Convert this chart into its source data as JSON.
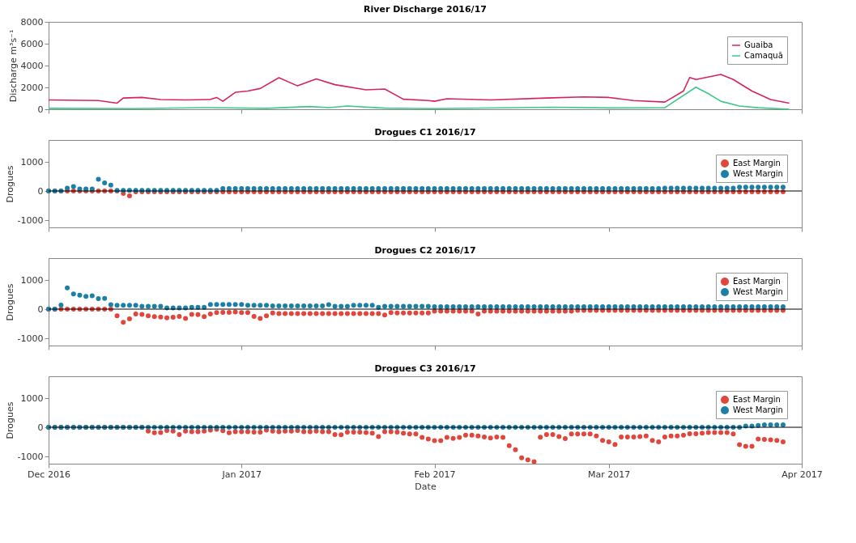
{
  "chart_data": [
    {
      "type": "line",
      "title": "River Discharge 2016/17",
      "ylabel": "Discharge m³s⁻¹",
      "xlim": [
        "2016-12-01",
        "2017-04-01"
      ],
      "xticks": [
        {
          "value": "2016-12-01",
          "label": null
        },
        {
          "value": "2017-01-01",
          "label": null
        },
        {
          "value": "2017-02-01",
          "label": null
        },
        {
          "value": "2017-03-01",
          "label": null
        },
        {
          "value": "2017-04-01",
          "label": null
        }
      ],
      "ylim": [
        0,
        8000
      ],
      "yticks": [
        0,
        2000,
        4000,
        6000,
        8000
      ],
      "tick_labels": "y",
      "legend": "top right",
      "series": [
        {
          "name": "Guaiba",
          "color": "#d6245e",
          "x": [
            "2016-12-01",
            "2016-12-09",
            "2016-12-12",
            "2016-12-13",
            "2016-12-16",
            "2016-12-19",
            "2016-12-23",
            "2016-12-27",
            "2016-12-28",
            "2016-12-29",
            "2016-12-31",
            "2017-01-02",
            "2017-01-04",
            "2017-01-07",
            "2017-01-10",
            "2017-01-13",
            "2017-01-16",
            "2017-01-21",
            "2017-01-24",
            "2017-01-27",
            "2017-01-31",
            "2017-02-01",
            "2017-02-03",
            "2017-02-10",
            "2017-02-19",
            "2017-02-25",
            "2017-03-01",
            "2017-03-05",
            "2017-03-10",
            "2017-03-13",
            "2017-03-14",
            "2017-03-15",
            "2017-03-19",
            "2017-03-21",
            "2017-03-24",
            "2017-03-27",
            "2017-03-30"
          ],
          "values": [
            850,
            800,
            560,
            1030,
            1080,
            890,
            850,
            900,
            1080,
            730,
            1550,
            1670,
            1900,
            2890,
            2140,
            2770,
            2250,
            1780,
            1850,
            920,
            800,
            730,
            960,
            850,
            1030,
            1130,
            1080,
            800,
            660,
            1670,
            2910,
            2720,
            3190,
            2720,
            1670,
            890,
            560
          ]
        },
        {
          "name": "Camaquã",
          "color": "#3ec88a",
          "x": [
            "2016-12-01",
            "2016-12-15",
            "2016-12-26",
            "2017-01-05",
            "2017-01-12",
            "2017-01-15",
            "2017-01-18",
            "2017-01-24",
            "2017-02-01",
            "2017-02-20",
            "2017-03-01",
            "2017-03-10",
            "2017-03-15",
            "2017-03-17",
            "2017-03-19",
            "2017-03-22",
            "2017-03-25",
            "2017-03-30"
          ],
          "values": [
            80,
            60,
            150,
            80,
            250,
            150,
            300,
            100,
            60,
            180,
            120,
            140,
            2020,
            1430,
            730,
            300,
            140,
            0
          ]
        }
      ]
    },
    {
      "type": "scatter",
      "title": "Drogues C1 2016/17",
      "ylabel": "Drogues",
      "marker": "circle",
      "legend": "top right",
      "tick_labels": "y",
      "xlim": [
        "2016-12-01",
        "2017-04-01"
      ],
      "xticks": [
        {
          "value": "2016-12-01",
          "label": null
        },
        {
          "value": "2017-01-01",
          "label": null
        },
        {
          "value": "2017-02-01",
          "label": null
        },
        {
          "value": "2017-03-01",
          "label": null
        },
        {
          "value": "2017-04-01",
          "label": null
        }
      ],
      "ylim": [
        -1250,
        1750
      ],
      "yticks": [
        -1000,
        0,
        1000
      ],
      "ref_lines": [
        {
          "axis": "y",
          "value": 0,
          "color": "#000000"
        }
      ],
      "x": [
        "2016-12-01",
        "2016-12-02",
        "2016-12-03",
        "2016-12-04",
        "2016-12-05",
        "2016-12-06",
        "2016-12-07",
        "2016-12-08",
        "2016-12-09",
        "2016-12-10",
        "2016-12-11",
        "2016-12-12",
        "2016-12-13",
        "2016-12-14",
        "2016-12-15",
        "2016-12-16",
        "2016-12-17",
        "2016-12-18",
        "2016-12-19",
        "2016-12-20",
        "2016-12-21",
        "2016-12-22",
        "2016-12-23",
        "2016-12-24",
        "2016-12-25",
        "2016-12-26",
        "2016-12-27",
        "2016-12-28",
        "2016-12-29",
        "2016-12-30",
        "2016-12-31",
        "2017-01-01",
        "2017-01-02",
        "2017-01-03",
        "2017-01-04",
        "2017-01-05",
        "2017-01-06",
        "2017-01-07",
        "2017-01-08",
        "2017-01-09",
        "2017-01-10",
        "2017-01-11",
        "2017-01-12",
        "2017-01-13",
        "2017-01-14",
        "2017-01-15",
        "2017-01-16",
        "2017-01-17",
        "2017-01-18",
        "2017-01-19",
        "2017-01-20",
        "2017-01-21",
        "2017-01-22",
        "2017-01-23",
        "2017-01-24",
        "2017-01-25",
        "2017-01-26",
        "2017-01-27",
        "2017-01-28",
        "2017-01-29",
        "2017-01-30",
        "2017-01-31",
        "2017-02-01",
        "2017-02-02",
        "2017-02-03",
        "2017-02-04",
        "2017-02-05",
        "2017-02-06",
        "2017-02-07",
        "2017-02-08",
        "2017-02-09",
        "2017-02-10",
        "2017-02-11",
        "2017-02-12",
        "2017-02-13",
        "2017-02-14",
        "2017-02-15",
        "2017-02-16",
        "2017-02-17",
        "2017-02-18",
        "2017-02-19",
        "2017-02-20",
        "2017-02-21",
        "2017-02-22",
        "2017-02-23",
        "2017-02-24",
        "2017-02-25",
        "2017-02-26",
        "2017-02-27",
        "2017-02-28",
        "2017-03-01",
        "2017-03-02",
        "2017-03-03",
        "2017-03-04",
        "2017-03-05",
        "2017-03-06",
        "2017-03-07",
        "2017-03-08",
        "2017-03-09",
        "2017-03-10",
        "2017-03-11",
        "2017-03-12",
        "2017-03-13",
        "2017-03-14",
        "2017-03-15",
        "2017-03-16",
        "2017-03-17",
        "2017-03-18",
        "2017-03-19",
        "2017-03-20",
        "2017-03-21",
        "2017-03-22",
        "2017-03-23",
        "2017-03-24",
        "2017-03-25",
        "2017-03-26",
        "2017-03-27",
        "2017-03-28",
        "2017-03-29"
      ],
      "series": [
        {
          "name": "East Margin",
          "color": "#e0463c",
          "values": [
            0,
            0,
            0,
            0,
            0,
            0,
            0,
            0,
            0,
            0,
            0,
            0,
            -80,
            -170,
            -30,
            -30,
            -30,
            -30,
            -30,
            -30,
            -30,
            -30,
            -30,
            -30,
            -30,
            -30,
            -30,
            -30,
            -30,
            -30,
            -30,
            -30,
            -30,
            -30,
            -30,
            -30,
            -30,
            -30,
            -30,
            -30,
            -30,
            -30,
            -30,
            -30,
            -30,
            -30,
            -30,
            -30,
            -30,
            -30,
            -30,
            -30,
            -30,
            -30,
            -30,
            -30,
            -30,
            -30,
            -30,
            -30,
            -30,
            -30,
            -30,
            -30,
            -30,
            -30,
            -30,
            -30,
            -30,
            -30,
            -30,
            -30,
            -30,
            -30,
            -30,
            -30,
            -30,
            -30,
            -30,
            -30,
            -30,
            -30,
            -30,
            -30,
            -30,
            -30,
            -30,
            -30,
            -30,
            -30,
            -30,
            -30,
            -30,
            -30,
            -30,
            -30,
            -30,
            -30,
            -30,
            -30,
            -30,
            -30,
            -30,
            -30,
            -30,
            -30,
            -30,
            -30,
            -30,
            -30,
            -30,
            -30,
            -30,
            -30,
            -30,
            -30,
            -30,
            -30,
            -30
          ]
        },
        {
          "name": "West Margin",
          "color": "#1b7fa6",
          "values": [
            0,
            0,
            0,
            100,
            150,
            70,
            70,
            70,
            400,
            280,
            200,
            20,
            20,
            20,
            20,
            20,
            20,
            20,
            20,
            20,
            20,
            20,
            20,
            20,
            20,
            20,
            20,
            20,
            80,
            80,
            80,
            80,
            80,
            80,
            80,
            80,
            80,
            80,
            80,
            80,
            80,
            80,
            80,
            80,
            80,
            80,
            80,
            80,
            80,
            80,
            80,
            80,
            80,
            80,
            80,
            80,
            80,
            80,
            80,
            80,
            80,
            80,
            80,
            80,
            80,
            80,
            80,
            80,
            80,
            80,
            80,
            80,
            80,
            80,
            80,
            80,
            80,
            80,
            80,
            80,
            80,
            80,
            80,
            80,
            80,
            80,
            80,
            80,
            80,
            80,
            80,
            80,
            80,
            80,
            80,
            80,
            80,
            80,
            80,
            100,
            100,
            100,
            100,
            100,
            100,
            100,
            100,
            100,
            100,
            100,
            100,
            130,
            130,
            130,
            130,
            130,
            130,
            130,
            130
          ]
        }
      ]
    },
    {
      "type": "scatter",
      "title": "Drogues C2 2016/17",
      "ylabel": "Drogues",
      "marker": "circle",
      "legend": "top right",
      "tick_labels": "y",
      "xlim": [
        "2016-12-01",
        "2017-04-01"
      ],
      "xticks": [
        {
          "value": "2016-12-01",
          "label": null
        },
        {
          "value": "2017-01-01",
          "label": null
        },
        {
          "value": "2017-02-01",
          "label": null
        },
        {
          "value": "2017-03-01",
          "label": null
        },
        {
          "value": "2017-04-01",
          "label": null
        }
      ],
      "ylim": [
        -1250,
        1750
      ],
      "yticks": [
        -1000,
        0,
        1000
      ],
      "ref_lines": [
        {
          "axis": "y",
          "value": 0,
          "color": "#000000"
        }
      ],
      "x": [
        "2016-12-01",
        "2016-12-02",
        "2016-12-03",
        "2016-12-04",
        "2016-12-05",
        "2016-12-06",
        "2016-12-07",
        "2016-12-08",
        "2016-12-09",
        "2016-12-10",
        "2016-12-11",
        "2016-12-12",
        "2016-12-13",
        "2016-12-14",
        "2016-12-15",
        "2016-12-16",
        "2016-12-17",
        "2016-12-18",
        "2016-12-19",
        "2016-12-20",
        "2016-12-21",
        "2016-12-22",
        "2016-12-23",
        "2016-12-24",
        "2016-12-25",
        "2016-12-26",
        "2016-12-27",
        "2016-12-28",
        "2016-12-29",
        "2016-12-30",
        "2016-12-31",
        "2017-01-01",
        "2017-01-02",
        "2017-01-03",
        "2017-01-04",
        "2017-01-05",
        "2017-01-06",
        "2017-01-07",
        "2017-01-08",
        "2017-01-09",
        "2017-01-10",
        "2017-01-11",
        "2017-01-12",
        "2017-01-13",
        "2017-01-14",
        "2017-01-15",
        "2017-01-16",
        "2017-01-17",
        "2017-01-18",
        "2017-01-19",
        "2017-01-20",
        "2017-01-21",
        "2017-01-22",
        "2017-01-23",
        "2017-01-24",
        "2017-01-25",
        "2017-01-26",
        "2017-01-27",
        "2017-01-28",
        "2017-01-29",
        "2017-01-30",
        "2017-01-31",
        "2017-02-01",
        "2017-02-02",
        "2017-02-03",
        "2017-02-04",
        "2017-02-05",
        "2017-02-06",
        "2017-02-07",
        "2017-02-08",
        "2017-02-09",
        "2017-02-10",
        "2017-02-11",
        "2017-02-12",
        "2017-02-13",
        "2017-02-14",
        "2017-02-15",
        "2017-02-16",
        "2017-02-17",
        "2017-02-18",
        "2017-02-19",
        "2017-02-20",
        "2017-02-21",
        "2017-02-22",
        "2017-02-23",
        "2017-02-24",
        "2017-02-25",
        "2017-02-26",
        "2017-02-27",
        "2017-02-28",
        "2017-03-01",
        "2017-03-02",
        "2017-03-03",
        "2017-03-04",
        "2017-03-05",
        "2017-03-06",
        "2017-03-07",
        "2017-03-08",
        "2017-03-09",
        "2017-03-10",
        "2017-03-11",
        "2017-03-12",
        "2017-03-13",
        "2017-03-14",
        "2017-03-15",
        "2017-03-16",
        "2017-03-17",
        "2017-03-18",
        "2017-03-19",
        "2017-03-20",
        "2017-03-21",
        "2017-03-22",
        "2017-03-23",
        "2017-03-24",
        "2017-03-25",
        "2017-03-26",
        "2017-03-27",
        "2017-03-28",
        "2017-03-29"
      ],
      "series": [
        {
          "name": "East Margin",
          "color": "#e0463c",
          "values": [
            0,
            0,
            0,
            0,
            0,
            0,
            0,
            0,
            0,
            0,
            0,
            -230,
            -450,
            -330,
            -170,
            -180,
            -230,
            -260,
            -270,
            -300,
            -280,
            -250,
            -320,
            -180,
            -190,
            -260,
            -170,
            -120,
            -110,
            -110,
            -100,
            -120,
            -120,
            -250,
            -320,
            -230,
            -130,
            -150,
            -150,
            -150,
            -150,
            -150,
            -150,
            -150,
            -150,
            -150,
            -150,
            -150,
            -150,
            -150,
            -150,
            -150,
            -150,
            -150,
            -200,
            -120,
            -130,
            -130,
            -130,
            -130,
            -130,
            -130,
            -70,
            -70,
            -70,
            -70,
            -70,
            -70,
            -70,
            -170,
            -70,
            -70,
            -70,
            -70,
            -70,
            -70,
            -70,
            -70,
            -70,
            -70,
            -70,
            -70,
            -70,
            -70,
            -70,
            -40,
            -40,
            -40,
            -40,
            -40,
            -40,
            -40,
            -40,
            -40,
            -40,
            -40,
            -40,
            -40,
            -40,
            -40,
            -40,
            -40,
            -40,
            -40,
            -40,
            -40,
            -40,
            -40,
            -40,
            -40,
            -40,
            -40,
            -40,
            -40,
            -40,
            -40,
            -40,
            -40,
            -40
          ]
        },
        {
          "name": "West Margin",
          "color": "#1b7fa6",
          "values": [
            0,
            0,
            140,
            730,
            520,
            480,
            440,
            460,
            360,
            370,
            150,
            130,
            130,
            130,
            130,
            100,
            100,
            100,
            100,
            40,
            40,
            40,
            40,
            60,
            60,
            60,
            160,
            160,
            160,
            160,
            160,
            160,
            130,
            130,
            130,
            130,
            110,
            110,
            110,
            110,
            110,
            110,
            110,
            110,
            110,
            150,
            100,
            100,
            100,
            130,
            130,
            130,
            130,
            60,
            100,
            100,
            100,
            100,
            100,
            100,
            100,
            100,
            80,
            80,
            80,
            80,
            80,
            80,
            80,
            80,
            80,
            80,
            80,
            80,
            80,
            80,
            80,
            80,
            80,
            80,
            80,
            80,
            80,
            80,
            80,
            80,
            80,
            80,
            80,
            80,
            80,
            80,
            80,
            80,
            80,
            80,
            80,
            80,
            80,
            80,
            80,
            80,
            80,
            80,
            80,
            80,
            80,
            80,
            80,
            80,
            80,
            80,
            80,
            80,
            80,
            80,
            80,
            80,
            80
          ]
        }
      ]
    },
    {
      "type": "scatter",
      "title": "Drogues C3 2016/17",
      "ylabel": "Drogues",
      "xlabel": "Date",
      "marker": "circle",
      "legend": "top right",
      "xlim": [
        "2016-12-01",
        "2017-04-01"
      ],
      "xticks": [
        {
          "value": "2016-12-01",
          "label": "Dec 2016"
        },
        {
          "value": "2017-01-01",
          "label": "Jan 2017"
        },
        {
          "value": "2017-02-01",
          "label": "Feb 2017"
        },
        {
          "value": "2017-03-01",
          "label": "Mar 2017"
        },
        {
          "value": "2017-04-01",
          "label": "Apr 2017"
        }
      ],
      "ylim": [
        -1250,
        1750
      ],
      "yticks": [
        -1000,
        0,
        1000
      ],
      "ref_lines": [
        {
          "axis": "y",
          "value": 0,
          "color": "#000000"
        }
      ],
      "x": [
        "2016-12-01",
        "2016-12-02",
        "2016-12-03",
        "2016-12-04",
        "2016-12-05",
        "2016-12-06",
        "2016-12-07",
        "2016-12-08",
        "2016-12-09",
        "2016-12-10",
        "2016-12-11",
        "2016-12-12",
        "2016-12-13",
        "2016-12-14",
        "2016-12-15",
        "2016-12-16",
        "2016-12-17",
        "2016-12-18",
        "2016-12-19",
        "2016-12-20",
        "2016-12-21",
        "2016-12-22",
        "2016-12-23",
        "2016-12-24",
        "2016-12-25",
        "2016-12-26",
        "2016-12-27",
        "2016-12-28",
        "2016-12-29",
        "2016-12-30",
        "2016-12-31",
        "2017-01-01",
        "2017-01-02",
        "2017-01-03",
        "2017-01-04",
        "2017-01-05",
        "2017-01-06",
        "2017-01-07",
        "2017-01-08",
        "2017-01-09",
        "2017-01-10",
        "2017-01-11",
        "2017-01-12",
        "2017-01-13",
        "2017-01-14",
        "2017-01-15",
        "2017-01-16",
        "2017-01-17",
        "2017-01-18",
        "2017-01-19",
        "2017-01-20",
        "2017-01-21",
        "2017-01-22",
        "2017-01-23",
        "2017-01-24",
        "2017-01-25",
        "2017-01-26",
        "2017-01-27",
        "2017-01-28",
        "2017-01-29",
        "2017-01-30",
        "2017-01-31",
        "2017-02-01",
        "2017-02-02",
        "2017-02-03",
        "2017-02-04",
        "2017-02-05",
        "2017-02-06",
        "2017-02-07",
        "2017-02-08",
        "2017-02-09",
        "2017-02-10",
        "2017-02-11",
        "2017-02-12",
        "2017-02-13",
        "2017-02-14",
        "2017-02-15",
        "2017-02-16",
        "2017-02-17",
        "2017-02-18",
        "2017-02-19",
        "2017-02-20",
        "2017-02-21",
        "2017-02-22",
        "2017-02-23",
        "2017-02-24",
        "2017-02-25",
        "2017-02-26",
        "2017-02-27",
        "2017-02-28",
        "2017-03-01",
        "2017-03-02",
        "2017-03-03",
        "2017-03-04",
        "2017-03-05",
        "2017-03-06",
        "2017-03-07",
        "2017-03-08",
        "2017-03-09",
        "2017-03-10",
        "2017-03-11",
        "2017-03-12",
        "2017-03-13",
        "2017-03-14",
        "2017-03-15",
        "2017-03-16",
        "2017-03-17",
        "2017-03-18",
        "2017-03-19",
        "2017-03-20",
        "2017-03-21",
        "2017-03-22",
        "2017-03-23",
        "2017-03-24",
        "2017-03-25",
        "2017-03-26",
        "2017-03-27",
        "2017-03-28",
        "2017-03-29"
      ],
      "series": [
        {
          "name": "East Margin",
          "color": "#e0463c",
          "values": [
            0,
            0,
            0,
            0,
            0,
            0,
            0,
            0,
            0,
            0,
            0,
            0,
            0,
            0,
            0,
            0,
            -130,
            -190,
            -180,
            -110,
            -130,
            -250,
            -130,
            -150,
            -150,
            -130,
            -100,
            -70,
            -120,
            -190,
            -150,
            -150,
            -150,
            -170,
            -170,
            -100,
            -130,
            -150,
            -130,
            -130,
            -110,
            -150,
            -150,
            -130,
            -150,
            -150,
            -250,
            -260,
            -170,
            -170,
            -170,
            -180,
            -200,
            -320,
            -150,
            -150,
            -170,
            -200,
            -230,
            -230,
            -350,
            -400,
            -460,
            -460,
            -350,
            -380,
            -350,
            -270,
            -270,
            -300,
            -330,
            -370,
            -330,
            -350,
            -630,
            -770,
            -1050,
            -1120,
            -1180,
            -340,
            -250,
            -250,
            -320,
            -390,
            -230,
            -230,
            -230,
            -230,
            -300,
            -450,
            -500,
            -590,
            -330,
            -330,
            -330,
            -320,
            -300,
            -450,
            -500,
            -330,
            -300,
            -300,
            -270,
            -220,
            -220,
            -200,
            -180,
            -180,
            -180,
            -180,
            -230,
            -600,
            -650,
            -650,
            -400,
            -420,
            -430,
            -450,
            -500
          ]
        },
        {
          "name": "West Margin",
          "color": "#1b7fa6",
          "values": [
            0,
            0,
            0,
            0,
            0,
            0,
            0,
            0,
            0,
            0,
            0,
            0,
            0,
            0,
            0,
            0,
            0,
            0,
            0,
            0,
            0,
            0,
            0,
            0,
            0,
            0,
            0,
            0,
            0,
            0,
            0,
            0,
            0,
            0,
            0,
            0,
            0,
            0,
            0,
            0,
            0,
            0,
            0,
            0,
            0,
            0,
            0,
            0,
            0,
            0,
            0,
            0,
            0,
            0,
            0,
            0,
            0,
            0,
            0,
            0,
            0,
            0,
            0,
            0,
            0,
            0,
            0,
            0,
            0,
            0,
            0,
            0,
            0,
            0,
            0,
            0,
            0,
            0,
            0,
            0,
            0,
            0,
            0,
            0,
            0,
            0,
            0,
            0,
            0,
            0,
            0,
            0,
            0,
            0,
            0,
            0,
            0,
            0,
            0,
            0,
            0,
            0,
            0,
            0,
            0,
            0,
            0,
            0,
            0,
            0,
            0,
            0,
            40,
            40,
            60,
            80,
            80,
            80,
            80
          ]
        }
      ]
    }
  ]
}
